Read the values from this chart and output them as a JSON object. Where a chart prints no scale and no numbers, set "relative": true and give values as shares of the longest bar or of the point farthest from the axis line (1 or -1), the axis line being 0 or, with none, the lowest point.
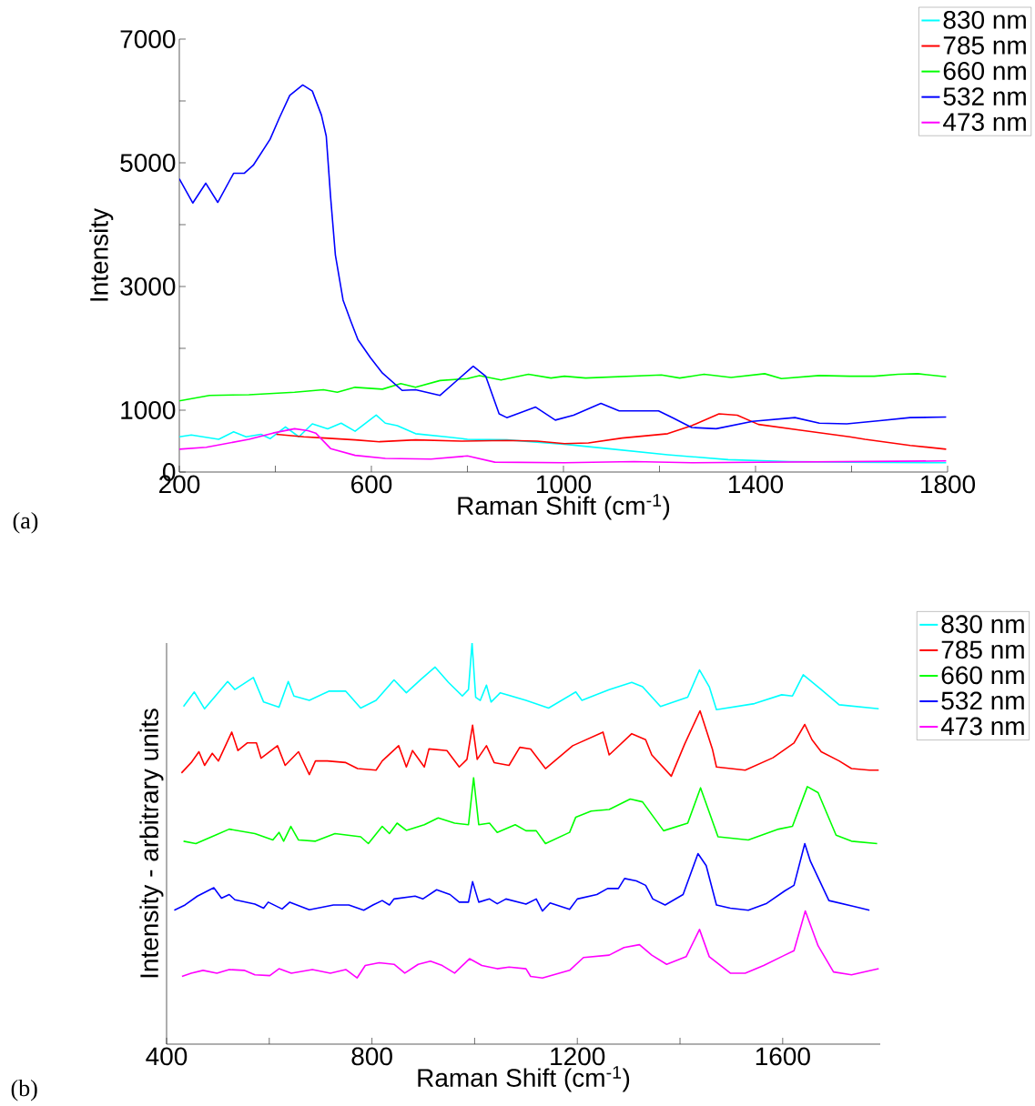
{
  "chart_data": [
    {
      "type": "line",
      "xlabel": "Raman Shift (cm$^{-1}$)",
      "ylabel": "Intensity",
      "annotations": [
        "(a)"
      ],
      "xlim": [
        200,
        1800
      ],
      "ylim": [
        0,
        7000
      ],
      "xticks": [
        200,
        {
          "value": 400,
          "label": null
        },
        600,
        {
          "value": 800,
          "label": null
        },
        1000,
        {
          "value": 1200,
          "label": null
        },
        1400,
        {
          "value": 1600,
          "label": null
        },
        1800
      ],
      "yticks": [
        0,
        1000,
        {
          "value": 2000,
          "label": null
        },
        3000,
        {
          "value": 4000,
          "label": null
        },
        5000,
        {
          "value": 6000,
          "label": null
        },
        7000
      ],
      "legend": "top right",
      "series": [
        {
          "name": "830 nm",
          "color": "#00ffff",
          "x": [
            200,
            225,
            282,
            313,
            339,
            370,
            389,
            421,
            449,
            477,
            509,
            537,
            566,
            610,
            629,
            654,
            692,
            755,
            800,
            882,
            1002,
            1090,
            1217,
            1343,
            1470,
            1596,
            1797
          ],
          "values": [
            570,
            600,
            530,
            650,
            570,
            610,
            540,
            730,
            570,
            780,
            700,
            790,
            660,
            920,
            790,
            750,
            620,
            570,
            530,
            520,
            450,
            380,
            280,
            200,
            170,
            160,
            150
          ]
        },
        {
          "name": "785 nm",
          "color": "#ff0000",
          "x": [
            402,
            459,
            503,
            566,
            617,
            692,
            787,
            882,
            945,
            1002,
            1052,
            1122,
            1217,
            1267,
            1324,
            1362,
            1406,
            1501,
            1596,
            1628,
            1722,
            1797
          ],
          "values": [
            610,
            570,
            550,
            520,
            490,
            520,
            500,
            510,
            500,
            460,
            470,
            550,
            620,
            750,
            940,
            920,
            770,
            670,
            570,
            530,
            430,
            370
          ]
        },
        {
          "name": "660 nm",
          "color": "#00ff00",
          "x": [
            200,
            263,
            345,
            440,
            500,
            529,
            566,
            623,
            661,
            692,
            743,
            800,
            825,
            870,
            927,
            974,
            1002,
            1046,
            1204,
            1242,
            1293,
            1349,
            1419,
            1454,
            1533,
            1596,
            1647,
            1697,
            1738,
            1797
          ],
          "values": [
            1150,
            1240,
            1250,
            1290,
            1330,
            1290,
            1370,
            1340,
            1430,
            1370,
            1480,
            1510,
            1560,
            1490,
            1580,
            1520,
            1550,
            1520,
            1570,
            1520,
            1580,
            1530,
            1590,
            1510,
            1560,
            1550,
            1550,
            1580,
            1590,
            1540
          ]
        },
        {
          "name": "532 nm",
          "color": "#0000ff",
          "x": [
            200,
            228,
            255,
            280,
            313,
            335,
            354,
            389,
            408,
            430,
            457,
            477,
            496,
            506,
            515,
            525,
            541,
            557,
            572,
            598,
            623,
            664,
            692,
            743,
            781,
            812,
            838,
            866,
            882,
            914,
            942,
            983,
            1021,
            1078,
            1116,
            1198,
            1229,
            1267,
            1318,
            1394,
            1482,
            1533,
            1590,
            1659,
            1722,
            1797
          ],
          "values": [
            4740,
            4350,
            4670,
            4360,
            4830,
            4830,
            4960,
            5380,
            5720,
            6090,
            6260,
            6160,
            5770,
            5430,
            4450,
            3510,
            2780,
            2440,
            2140,
            1850,
            1600,
            1320,
            1330,
            1240,
            1500,
            1710,
            1550,
            940,
            880,
            970,
            1050,
            840,
            920,
            1110,
            990,
            990,
            870,
            720,
            700,
            820,
            880,
            790,
            780,
            830,
            880,
            890
          ]
        },
        {
          "name": "473 nm",
          "color": "#ff00ff",
          "x": [
            200,
            256,
            345,
            395,
            440,
            468,
            484,
            515,
            566,
            629,
            724,
            800,
            857,
            1002,
            1147,
            1267,
            1797
          ],
          "values": [
            370,
            400,
            530,
            630,
            700,
            670,
            630,
            380,
            270,
            220,
            210,
            260,
            160,
            150,
            170,
            150,
            180
          ]
        }
      ]
    },
    {
      "type": "line",
      "xlabel": "Raman Shift (cm$^{-1}$)",
      "ylabel": "Intensity - arbitrary units",
      "annotations": [
        "(b)"
      ],
      "relative": true,
      "xlim": [
        400,
        1790
      ],
      "xticks": [
        400,
        {
          "value": 600,
          "label": null
        },
        800,
        {
          "value": 1000,
          "label": null
        },
        1200,
        {
          "value": 1400,
          "label": null
        },
        1600
      ],
      "legend": "top right",
      "series": [
        {
          "name": "830 nm",
          "color": "#00ffff",
          "x": [
            433,
            454,
            474,
            519,
            533,
            569,
            589,
            619,
            637,
            648,
            678,
            716,
            749,
            778,
            808,
            843,
            867,
            896,
            923,
            949,
            976,
            988,
            995,
            1002,
            1011,
            1023,
            1032,
            1050,
            1100,
            1144,
            1197,
            1209,
            1262,
            1306,
            1327,
            1362,
            1415,
            1438,
            1457,
            1471,
            1545,
            1598,
            1619,
            1640,
            1675,
            1710,
            1787
          ],
          "values": [
            0.842,
            0.878,
            0.836,
            0.904,
            0.884,
            0.914,
            0.853,
            0.84,
            0.904,
            0.868,
            0.857,
            0.88,
            0.88,
            0.838,
            0.857,
            0.908,
            0.876,
            0.91,
            0.94,
            0.902,
            0.868,
            0.884,
            1.0,
            0.865,
            0.857,
            0.895,
            0.853,
            0.876,
            0.857,
            0.838,
            0.878,
            0.857,
            0.884,
            0.902,
            0.891,
            0.842,
            0.865,
            0.933,
            0.891,
            0.834,
            0.849,
            0.871,
            0.868,
            0.921,
            0.884,
            0.846,
            0.836
          ]
        },
        {
          "name": "785 nm",
          "color": "#ff0000",
          "x": [
            429,
            448,
            463,
            474,
            489,
            501,
            527,
            539,
            557,
            575,
            584,
            616,
            631,
            657,
            678,
            690,
            713,
            749,
            772,
            808,
            820,
            852,
            867,
            879,
            902,
            911,
            946,
            970,
            985,
            996,
            1005,
            1023,
            1038,
            1067,
            1088,
            1109,
            1138,
            1191,
            1250,
            1262,
            1306,
            1333,
            1345,
            1383,
            1409,
            1439,
            1463,
            1471,
            1527,
            1581,
            1622,
            1643,
            1657,
            1675,
            1710,
            1734,
            1769,
            1787
          ],
          "values": [
            0.676,
            0.702,
            0.729,
            0.695,
            0.725,
            0.706,
            0.778,
            0.732,
            0.751,
            0.751,
            0.713,
            0.744,
            0.695,
            0.729,
            0.672,
            0.706,
            0.706,
            0.702,
            0.687,
            0.683,
            0.706,
            0.744,
            0.691,
            0.732,
            0.691,
            0.736,
            0.732,
            0.691,
            0.71,
            0.795,
            0.71,
            0.744,
            0.702,
            0.695,
            0.74,
            0.736,
            0.687,
            0.744,
            0.778,
            0.721,
            0.774,
            0.759,
            0.721,
            0.668,
            0.748,
            0.831,
            0.736,
            0.691,
            0.683,
            0.714,
            0.751,
            0.797,
            0.759,
            0.729,
            0.706,
            0.687,
            0.683,
            0.683
          ]
        },
        {
          "name": "660 nm",
          "color": "#00ff00",
          "x": [
            433,
            457,
            495,
            522,
            572,
            607,
            619,
            628,
            642,
            657,
            690,
            728,
            778,
            793,
            820,
            834,
            849,
            867,
            902,
            929,
            961,
            988,
            998,
            1008,
            1029,
            1044,
            1079,
            1100,
            1120,
            1138,
            1185,
            1197,
            1227,
            1262,
            1303,
            1327,
            1368,
            1415,
            1440,
            1474,
            1533,
            1592,
            1619,
            1648,
            1669,
            1704,
            1734,
            1784
          ],
          "values": [
            0.506,
            0.5,
            0.521,
            0.536,
            0.525,
            0.509,
            0.528,
            0.506,
            0.543,
            0.509,
            0.506,
            0.525,
            0.517,
            0.5,
            0.543,
            0.525,
            0.551,
            0.533,
            0.547,
            0.564,
            0.551,
            0.547,
            0.664,
            0.547,
            0.551,
            0.528,
            0.547,
            0.532,
            0.532,
            0.5,
            0.528,
            0.566,
            0.581,
            0.585,
            0.611,
            0.604,
            0.532,
            0.551,
            0.639,
            0.517,
            0.509,
            0.536,
            0.543,
            0.642,
            0.627,
            0.521,
            0.506,
            0.5
          ]
        },
        {
          "name": "532 nm",
          "color": "#0000ff",
          "x": [
            415,
            436,
            460,
            492,
            507,
            522,
            533,
            572,
            589,
            598,
            625,
            640,
            678,
            725,
            755,
            784,
            802,
            820,
            834,
            843,
            884,
            899,
            926,
            952,
            970,
            988,
            996,
            1008,
            1029,
            1044,
            1061,
            1100,
            1120,
            1132,
            1147,
            1185,
            1200,
            1238,
            1259,
            1280,
            1292,
            1315,
            1333,
            1347,
            1371,
            1406,
            1435,
            1451,
            1471,
            1498,
            1533,
            1569,
            1604,
            1622,
            1643,
            1654,
            1690,
            1740,
            1769
          ],
          "values": [
            0.334,
            0.347,
            0.369,
            0.39,
            0.364,
            0.373,
            0.36,
            0.349,
            0.339,
            0.354,
            0.337,
            0.354,
            0.335,
            0.347,
            0.347,
            0.334,
            0.347,
            0.358,
            0.347,
            0.362,
            0.369,
            0.362,
            0.385,
            0.373,
            0.354,
            0.354,
            0.405,
            0.354,
            0.362,
            0.35,
            0.362,
            0.349,
            0.362,
            0.332,
            0.352,
            0.336,
            0.362,
            0.373,
            0.388,
            0.388,
            0.413,
            0.407,
            0.396,
            0.362,
            0.347,
            0.373,
            0.475,
            0.445,
            0.347,
            0.339,
            0.334,
            0.351,
            0.382,
            0.396,
            0.5,
            0.456,
            0.358,
            0.343,
            0.334
          ]
        },
        {
          "name": "473 nm",
          "color": "#ff00ff",
          "x": [
            430,
            448,
            471,
            498,
            522,
            551,
            572,
            601,
            619,
            643,
            684,
            719,
            749,
            771,
            787,
            814,
            843,
            864,
            890,
            914,
            937,
            961,
            990,
            1014,
            1044,
            1067,
            1100,
            1109,
            1132,
            1185,
            1212,
            1262,
            1291,
            1321,
            1345,
            1374,
            1412,
            1438,
            1457,
            1498,
            1527,
            1563,
            1604,
            1622,
            1644,
            1669,
            1699,
            1734,
            1787
          ],
          "values": [
            0.169,
            0.177,
            0.184,
            0.177,
            0.186,
            0.184,
            0.173,
            0.171,
            0.188,
            0.177,
            0.186,
            0.177,
            0.186,
            0.165,
            0.196,
            0.203,
            0.199,
            0.177,
            0.199,
            0.207,
            0.196,
            0.177,
            0.213,
            0.196,
            0.188,
            0.192,
            0.188,
            0.169,
            0.165,
            0.184,
            0.216,
            0.222,
            0.241,
            0.248,
            0.222,
            0.199,
            0.218,
            0.286,
            0.218,
            0.177,
            0.177,
            0.196,
            0.222,
            0.233,
            0.332,
            0.245,
            0.18,
            0.173,
            0.188
          ]
        }
      ]
    }
  ]
}
